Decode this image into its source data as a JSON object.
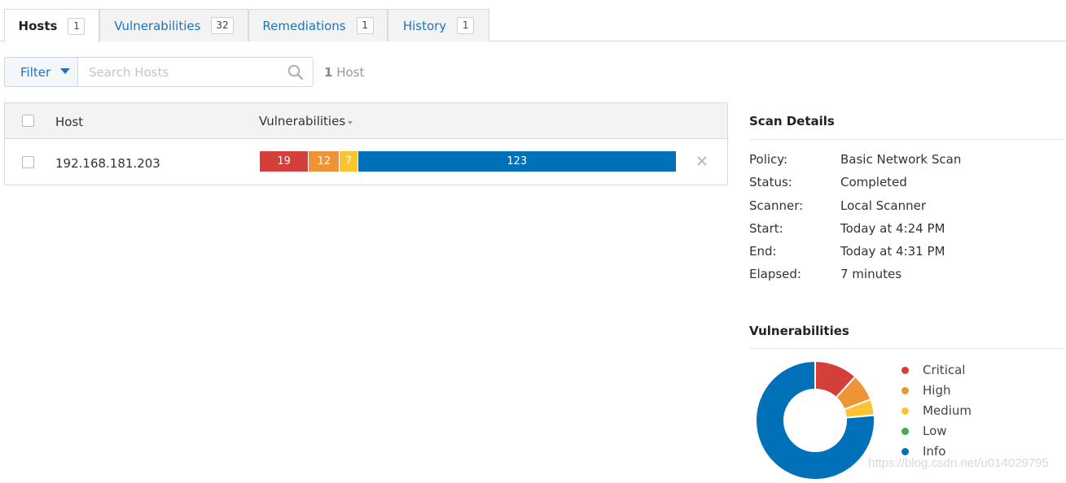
{
  "tabs": [
    {
      "label": "Hosts",
      "count": "1"
    },
    {
      "label": "Vulnerabilities",
      "count": "32"
    },
    {
      "label": "Remediations",
      "count": "1"
    },
    {
      "label": "History",
      "count": "1"
    }
  ],
  "toolbar": {
    "filter_label": "Filter",
    "search_placeholder": "Search Hosts",
    "search_value": "",
    "host_count_number": "1",
    "host_count_label": "Host"
  },
  "table": {
    "columns": {
      "host": "Host",
      "vulnerabilities": "Vulnerabilities"
    },
    "rows": [
      {
        "host": "192.168.181.203",
        "counts": {
          "critical": "19",
          "high": "12",
          "medium": "7",
          "low": "0",
          "info": "123"
        }
      }
    ]
  },
  "scan_details": {
    "title": "Scan Details",
    "rows": [
      {
        "key": "Policy:",
        "value": "Basic Network Scan"
      },
      {
        "key": "Status:",
        "value": "Completed"
      },
      {
        "key": "Scanner:",
        "value": "Local Scanner"
      },
      {
        "key": "Start:",
        "value": "Today at 4:24 PM"
      },
      {
        "key": "End:",
        "value": "Today at 4:31 PM"
      },
      {
        "key": "Elapsed:",
        "value": "7 minutes"
      }
    ]
  },
  "vulnerabilities_chart": {
    "title": "Vulnerabilities",
    "legend": [
      {
        "label": "Critical",
        "color": "#d43f3a"
      },
      {
        "label": "High",
        "color": "#ee9336"
      },
      {
        "label": "Medium",
        "color": "#fdc431"
      },
      {
        "label": "Low",
        "color": "#3fae49"
      },
      {
        "label": "Info",
        "color": "#0071b9"
      }
    ]
  },
  "chart_data": {
    "type": "pie",
    "categories": [
      "Critical",
      "High",
      "Medium",
      "Low",
      "Info"
    ],
    "values": [
      19,
      12,
      7,
      0,
      123
    ],
    "title": "Vulnerabilities",
    "colors": [
      "#d43f3a",
      "#ee9336",
      "#fdc431",
      "#3fae49",
      "#0071b9"
    ],
    "legend_position": "right"
  },
  "watermark": "https://blog.csdn.net/u014029795"
}
